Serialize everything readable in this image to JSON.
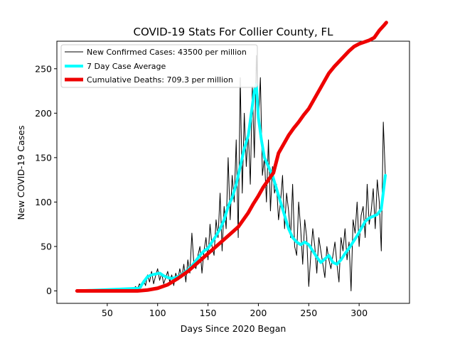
{
  "chart_data": {
    "type": "line",
    "title": "COVID-19 Stats For Collier County, FL",
    "xlabel": "Days Since 2020 Began",
    "ylabel": "New COVID-19 Cases",
    "xlim": [
      0,
      350
    ],
    "ylim": [
      -14,
      281
    ],
    "xticks": [
      50,
      100,
      150,
      200,
      250,
      300
    ],
    "yticks": [
      0,
      50,
      100,
      150,
      200,
      250
    ],
    "legend_position": "top-left",
    "series": [
      {
        "name": "New Confirmed Cases: 43500 per million",
        "color": "#000000",
        "width": 1,
        "x": [
          20,
          60,
          70,
          72,
          74,
          76,
          78,
          80,
          82,
          84,
          86,
          88,
          90,
          92,
          94,
          96,
          98,
          100,
          102,
          104,
          106,
          108,
          110,
          112,
          114,
          116,
          118,
          120,
          122,
          124,
          126,
          128,
          130,
          132,
          134,
          136,
          138,
          140,
          142,
          144,
          146,
          148,
          150,
          152,
          154,
          156,
          158,
          160,
          162,
          164,
          166,
          168,
          170,
          172,
          174,
          176,
          178,
          180,
          182,
          184,
          186,
          188,
          190,
          192,
          194,
          196,
          198,
          200,
          202,
          204,
          206,
          208,
          210,
          212,
          214,
          216,
          218,
          220,
          222,
          224,
          226,
          228,
          230,
          232,
          234,
          236,
          238,
          240,
          242,
          244,
          246,
          248,
          250,
          252,
          254,
          256,
          258,
          260,
          262,
          264,
          266,
          268,
          270,
          272,
          274,
          276,
          278,
          280,
          282,
          284,
          286,
          288,
          290,
          292,
          294,
          296,
          298,
          300,
          302,
          304,
          306,
          308,
          310,
          312,
          314,
          316,
          318,
          320,
          322,
          324,
          326
        ],
        "y": [
          0,
          0,
          2,
          0,
          3,
          1,
          5,
          2,
          8,
          4,
          12,
          6,
          18,
          10,
          22,
          8,
          17,
          25,
          12,
          20,
          8,
          15,
          22,
          10,
          18,
          6,
          20,
          12,
          25,
          15,
          30,
          10,
          35,
          20,
          65,
          30,
          25,
          40,
          50,
          20,
          45,
          60,
          35,
          75,
          50,
          40,
          80,
          60,
          110,
          45,
          95,
          70,
          150,
          80,
          130,
          100,
          170,
          60,
          240,
          110,
          200,
          140,
          180,
          120,
          230,
          150,
          265,
          190,
          240,
          130,
          150,
          100,
          170,
          90,
          140,
          110,
          120,
          80,
          100,
          130,
          70,
          110,
          90,
          60,
          120,
          50,
          40,
          100,
          70,
          30,
          80,
          60,
          5,
          40,
          70,
          50,
          20,
          60,
          45,
          30,
          15,
          50,
          35,
          25,
          40,
          55,
          30,
          10,
          60,
          45,
          70,
          35,
          55,
          0,
          80,
          65,
          100,
          50,
          85,
          95,
          60,
          120,
          75,
          90,
          115,
          70,
          125,
          100,
          45,
          190,
          130
        ],
        "legend_label": "New Confirmed Cases: 43500 per million"
      },
      {
        "name": "7 Day Case Average",
        "color": "#00ffff",
        "width": 4,
        "x": [
          20,
          82,
          86,
          90,
          94,
          98,
          102,
          106,
          110,
          114,
          118,
          122,
          126,
          130,
          134,
          138,
          142,
          146,
          150,
          154,
          158,
          162,
          166,
          170,
          174,
          178,
          182,
          186,
          190,
          193,
          196,
          198,
          200,
          203,
          206,
          210,
          214,
          218,
          222,
          226,
          230,
          234,
          238,
          242,
          246,
          250,
          254,
          258,
          262,
          266,
          270,
          274,
          278,
          282,
          286,
          290,
          294,
          298,
          302,
          306,
          310,
          314,
          318,
          322,
          326
        ],
        "y": [
          0,
          3,
          10,
          16,
          18,
          19,
          20,
          17,
          15,
          14,
          15,
          17,
          20,
          24,
          28,
          34,
          40,
          45,
          48,
          55,
          62,
          70,
          80,
          95,
          105,
          120,
          140,
          160,
          175,
          200,
          225,
          232,
          195,
          170,
          150,
          140,
          130,
          115,
          100,
          85,
          70,
          60,
          55,
          52,
          55,
          52,
          45,
          38,
          32,
          36,
          40,
          32,
          30,
          35,
          42,
          48,
          55,
          62,
          70,
          78,
          82,
          84,
          86,
          92,
          130
        ],
        "legend_label": "7 Day Case Average"
      },
      {
        "name": "Cumulative Deaths: 709.3 per million",
        "color": "#ee0000",
        "width": 5,
        "x": [
          20,
          80,
          90,
          100,
          110,
          120,
          130,
          140,
          150,
          160,
          170,
          180,
          190,
          195,
          200,
          205,
          210,
          215,
          220,
          225,
          230,
          235,
          240,
          245,
          250,
          255,
          260,
          265,
          270,
          275,
          280,
          285,
          290,
          295,
          300,
          305,
          310,
          315,
          320,
          324,
          327
        ],
        "y": [
          0,
          0,
          1,
          3,
          7,
          14,
          22,
          32,
          42,
          52,
          62,
          72,
          88,
          98,
          107,
          117,
          125,
          133,
          155,
          165,
          175,
          183,
          190,
          198,
          205,
          215,
          225,
          235,
          245,
          252,
          258,
          264,
          270,
          275,
          278,
          280,
          282,
          285,
          293,
          298,
          302
        ],
        "legend_label": "Cumulative Deaths: 709.3 per million"
      }
    ]
  }
}
